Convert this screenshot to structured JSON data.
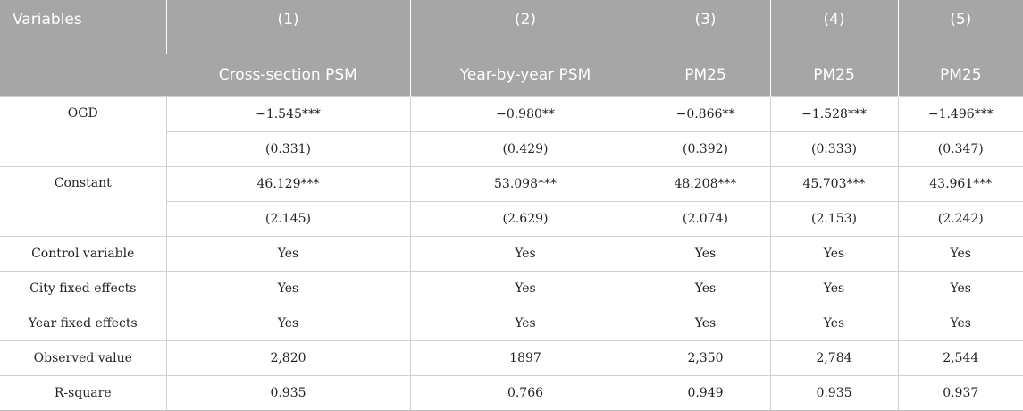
{
  "header": {
    "variables_label": "Variables",
    "columns": [
      {
        "num": "(1)",
        "name": "Cross-section PSM"
      },
      {
        "num": "(2)",
        "name": "Year-by-year PSM"
      },
      {
        "num": "(3)",
        "name": "PM25"
      },
      {
        "num": "(4)",
        "name": "PM25"
      },
      {
        "num": "(5)",
        "name": "PM25"
      }
    ]
  },
  "rows": {
    "ogd": {
      "label": "OGD",
      "coef": [
        "−1.545***",
        "−0.980**",
        "−0.866**",
        "−1.528***",
        "−1.496***"
      ],
      "se": [
        "(0.331)",
        "(0.429)",
        "(0.392)",
        "(0.333)",
        "(0.347)"
      ]
    },
    "constant": {
      "label": "Constant",
      "coef": [
        "46.129***",
        "53.098***",
        "48.208***",
        "45.703***",
        "43.961***"
      ],
      "se": [
        "(2.145)",
        "(2.629)",
        "(2.074)",
        "(2.153)",
        "(2.242)"
      ]
    },
    "control": {
      "label": "Control variable",
      "values": [
        "Yes",
        "Yes",
        "Yes",
        "Yes",
        "Yes"
      ]
    },
    "city_fe": {
      "label": "City fixed effects",
      "values": [
        "Yes",
        "Yes",
        "Yes",
        "Yes",
        "Yes"
      ]
    },
    "year_fe": {
      "label": "Year fixed effects",
      "values": [
        "Yes",
        "Yes",
        "Yes",
        "Yes",
        "Yes"
      ]
    },
    "observed": {
      "label": "Observed value",
      "values": [
        "2,820",
        "1897",
        "2,350",
        "2,784",
        "2,544"
      ]
    },
    "r_square": {
      "label": "R-square",
      "values": [
        "0.935",
        "0.766",
        "0.949",
        "0.935",
        "0.937"
      ]
    }
  }
}
